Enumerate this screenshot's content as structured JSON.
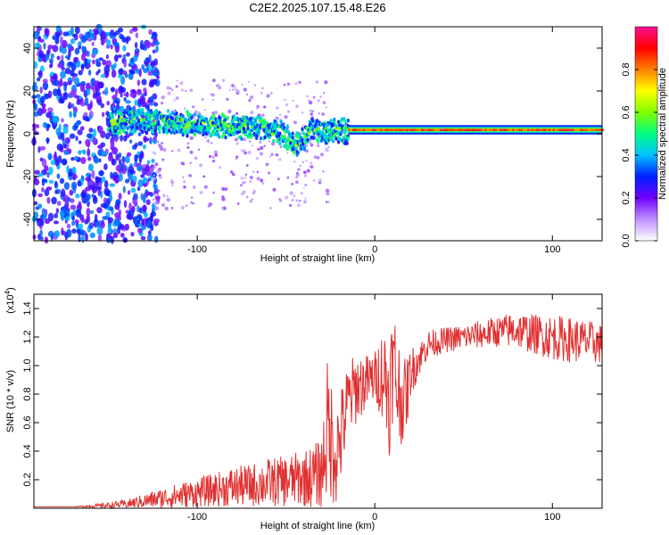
{
  "chart_data": [
    {
      "type": "heatmap",
      "title": "C2E2.2025.107.15.48.E26",
      "xlabel": "Height of straight line (km)",
      "ylabel": "Frequency (Hz)",
      "xlim": [
        -192,
        128
      ],
      "ylim": [
        -50,
        50
      ],
      "xticks": [
        -100,
        0,
        100
      ],
      "xtick_labels": [
        "-100",
        "0",
        "100"
      ],
      "yticks": [
        -40,
        -20,
        0,
        20,
        40
      ],
      "ytick_labels": [
        "-40",
        "-20",
        "0",
        "20",
        "40"
      ],
      "colorbar": {
        "label": "Normalized spectral amplitude",
        "range": [
          0,
          1
        ],
        "ticks": [
          0.0,
          0.2,
          0.4,
          0.6,
          0.8
        ],
        "tick_labels": [
          "0.0",
          "0.2",
          "0.4",
          "0.6",
          "0.8"
        ],
        "colors": [
          "#ffffff",
          "#c090ff",
          "#7000ff",
          "#0020ff",
          "#00c0ff",
          "#00ff80",
          "#80ff00",
          "#ffff00",
          "#ff8000",
          "#ff0000",
          "#ff1090"
        ]
      },
      "ridge": {
        "x": [
          -150,
          -130,
          -110,
          -90,
          -70,
          -60,
          -52,
          -45,
          -40,
          -35,
          -30,
          -25,
          -20,
          -10,
          0,
          5,
          10,
          50,
          100,
          128
        ],
        "freq": [
          6,
          6,
          5,
          4,
          3,
          2,
          0,
          -5,
          -2,
          2,
          0,
          1,
          1,
          1,
          2,
          4,
          2,
          2,
          2,
          2
        ]
      }
    },
    {
      "type": "line",
      "title": "",
      "xlabel": "Height of straight line (km)",
      "ylabel": "SNR (10 * v/v)",
      "y_scale_label": "(x10",
      "y_scale_exp": "4",
      "xlim": [
        -192,
        128
      ],
      "ylim": [
        0,
        1.5
      ],
      "xticks": [
        -100,
        0,
        100
      ],
      "xtick_labels": [
        "-100",
        "0",
        "100"
      ],
      "yticks": [
        0.2,
        0.4,
        0.6,
        0.8,
        1.0,
        1.2,
        1.4
      ],
      "ytick_labels": [
        "0.2",
        "0.4",
        "0.6",
        "0.8",
        "1.0",
        "1.2",
        "1.4"
      ],
      "line_color": "#e03030",
      "series": [
        {
          "name": "SNR",
          "x": [
            -192,
            -170,
            -150,
            -140,
            -130,
            -120,
            -110,
            -100,
            -90,
            -80,
            -70,
            -60,
            -50,
            -40,
            -35,
            -30,
            -27,
            -25,
            -22,
            -20,
            -15,
            -10,
            -5,
            0,
            5,
            8,
            10,
            12,
            15,
            18,
            20,
            25,
            30,
            40,
            50,
            60,
            70,
            80,
            90,
            100,
            110,
            120,
            128
          ],
          "mean": [
            0.01,
            0.01,
            0.02,
            0.03,
            0.05,
            0.07,
            0.09,
            0.11,
            0.13,
            0.15,
            0.16,
            0.18,
            0.19,
            0.21,
            0.22,
            0.25,
            0.55,
            0.5,
            0.4,
            0.45,
            0.75,
            0.85,
            0.88,
            0.92,
            0.95,
            0.8,
            1.0,
            0.9,
            0.75,
            0.8,
            0.95,
            1.05,
            1.15,
            1.18,
            1.2,
            1.22,
            1.24,
            1.25,
            1.22,
            1.2,
            1.18,
            1.17,
            1.15
          ],
          "spread": [
            0.0,
            0.0,
            0.02,
            0.03,
            0.05,
            0.07,
            0.09,
            0.1,
            0.12,
            0.14,
            0.15,
            0.17,
            0.18,
            0.2,
            0.22,
            0.25,
            0.5,
            0.45,
            0.4,
            0.35,
            0.28,
            0.25,
            0.2,
            0.18,
            0.35,
            0.45,
            0.4,
            0.5,
            0.3,
            0.25,
            0.18,
            0.12,
            0.1,
            0.09,
            0.09,
            0.1,
            0.11,
            0.13,
            0.14,
            0.16,
            0.16,
            0.15,
            0.14
          ]
        }
      ]
    }
  ]
}
